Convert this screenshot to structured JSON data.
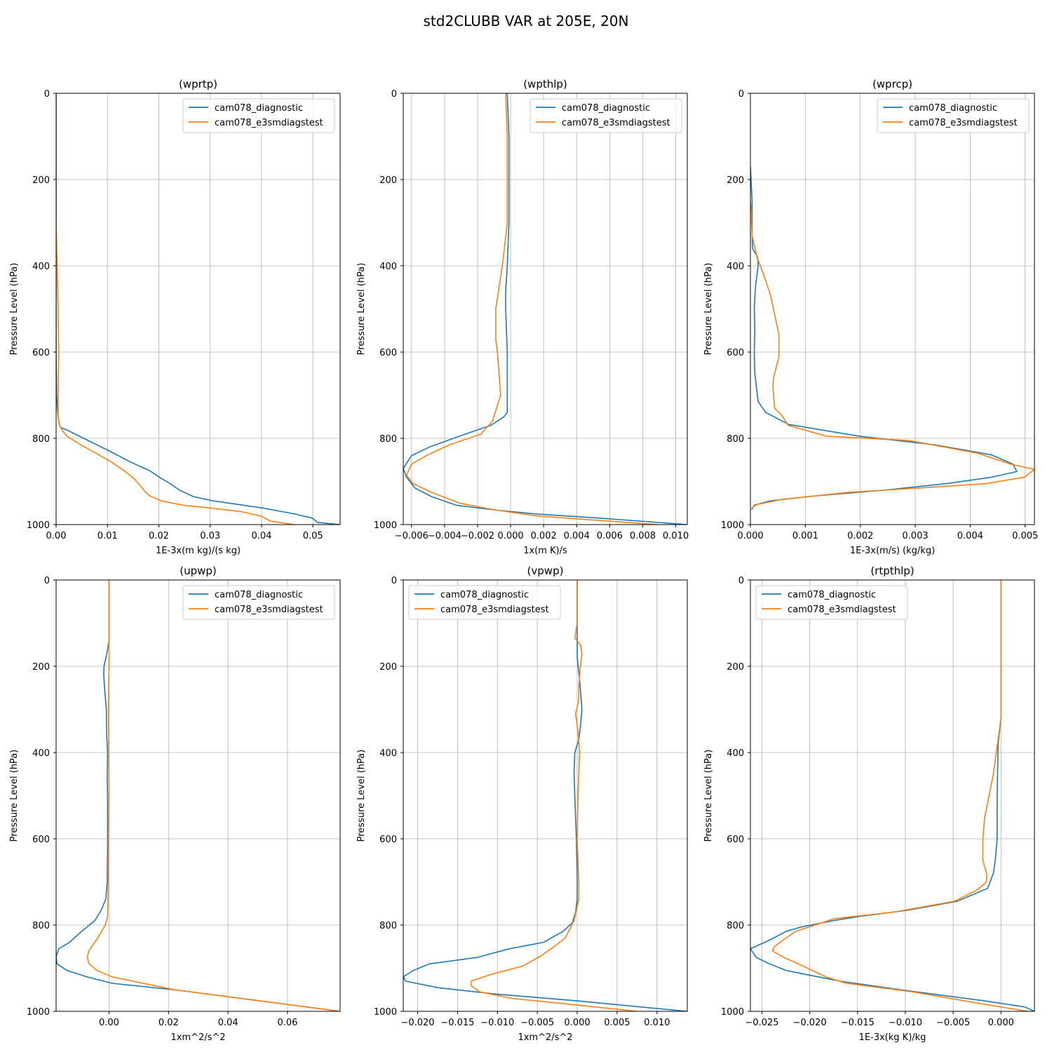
{
  "figure": {
    "suptitle": "std2CLUBB VAR at 205E, 20N"
  },
  "colors": {
    "series_1": "#1f77b4",
    "series_2": "#ff7f0e"
  },
  "chart_data": [
    {
      "type": "line",
      "title": "(wprtp)",
      "xlabel": "1E-3x(m kg)/(s kg)",
      "ylabel": "Pressure Level (hPa)",
      "xlim": [
        0,
        0.0553
      ],
      "ylim": [
        1000,
        0
      ],
      "xticks": [
        0,
        0.01,
        0.02,
        0.03,
        0.04,
        0.05
      ],
      "xtick_labels": [
        "0.00",
        "0.01",
        "0.02",
        "0.03",
        "0.04",
        "0.05"
      ],
      "yticks": [
        0,
        200,
        400,
        600,
        800,
        1000
      ],
      "ytick_labels": [
        "0",
        "200",
        "400",
        "600",
        "800",
        "1000"
      ],
      "grid": true,
      "legend": "upper right",
      "series": [
        {
          "name": "cam078_diagnostic",
          "x": [
            0,
            0,
            0,
            0,
            0,
            0,
            0,
            0.0001,
            0.0003,
            0.0005,
            0.0007,
            0.0009,
            0.002,
            0.0045,
            0.0105,
            0.0145,
            0.0182,
            0.0205,
            0.0222,
            0.024,
            0.0267,
            0.0306,
            0.0404,
            0.0463,
            0.0499,
            0.0509,
            0.0553
          ],
          "y": [
            0,
            100,
            200,
            300,
            400,
            500,
            600,
            700,
            740,
            760,
            770,
            775,
            780,
            795,
            830,
            855,
            875,
            893,
            905,
            920,
            935,
            945,
            962,
            975,
            985,
            995,
            1000
          ]
        },
        {
          "name": "cam078_e3smdiagstest",
          "x": [
            0,
            0,
            0,
            0,
            0.0002,
            0.0004,
            0.0005,
            0.0004,
            0.0004,
            0.0007,
            0.0011,
            0.0021,
            0.0048,
            0.0108,
            0.0138,
            0.0153,
            0.0164,
            0.0172,
            0.0181,
            0.0205,
            0.0247,
            0.0303,
            0.036,
            0.0398,
            0.0418,
            0.0464
          ],
          "y": [
            0,
            100,
            200,
            300,
            400,
            500,
            600,
            700,
            750,
            770,
            780,
            795,
            815,
            855,
            880,
            895,
            910,
            922,
            933,
            945,
            955,
            962,
            970,
            980,
            992,
            1000
          ]
        }
      ]
    },
    {
      "type": "line",
      "title": "(wpthlp)",
      "xlabel": "1x(m K)/s",
      "ylabel": "Pressure Level (hPa)",
      "xlim": [
        -0.0065,
        0.0107
      ],
      "ylim": [
        1000,
        0
      ],
      "xticks": [
        -0.006,
        -0.004,
        -0.002,
        0,
        0.002,
        0.004,
        0.006,
        0.008,
        0.01
      ],
      "xtick_labels": [
        "−0.006",
        "−0.004",
        "−0.002",
        "0.000",
        "0.002",
        "0.004",
        "0.006",
        "0.008",
        "0.010"
      ],
      "yticks": [
        0,
        200,
        400,
        600,
        800,
        1000
      ],
      "ytick_labels": [
        "0",
        "200",
        "400",
        "600",
        "800",
        "1000"
      ],
      "grid": true,
      "legend": "upper right",
      "series": [
        {
          "name": "cam078_diagnostic",
          "x": [
            -0.0002,
            -0.0001,
            -0.0001,
            -0.0001,
            -0.0002,
            -0.0003,
            -0.0003,
            -0.0002,
            -0.0002,
            -0.0002,
            -0.0002,
            -0.0004,
            -0.0012,
            -0.0031,
            -0.0049,
            -0.006,
            -0.0065,
            -0.0063,
            -0.0058,
            -0.0048,
            -0.0033,
            -0.0012,
            0.0014,
            0.0054,
            0.0107
          ],
          "y": [
            0,
            100,
            200,
            300,
            400,
            460,
            500,
            600,
            700,
            720,
            740,
            750,
            770,
            795,
            820,
            840,
            870,
            890,
            915,
            935,
            955,
            965,
            975,
            985,
            1000
          ]
        },
        {
          "name": "cam078_e3smdiagstest",
          "x": [
            -0.0003,
            -0.0002,
            -0.0002,
            -0.0002,
            -0.0002,
            -0.0005,
            -0.0007,
            -0.0009,
            -0.0009,
            -0.0008,
            -0.0007,
            -0.0006,
            -0.0011,
            -0.0018,
            -0.0037,
            -0.0051,
            -0.006,
            -0.0063,
            -0.0059,
            -0.0048,
            -0.0031,
            -0.0011,
            0.0016,
            0.0089
          ],
          "y": [
            0,
            100,
            200,
            250,
            300,
            400,
            450,
            500,
            570,
            600,
            650,
            700,
            760,
            790,
            815,
            840,
            860,
            885,
            905,
            925,
            950,
            965,
            980,
            1000
          ]
        }
      ]
    },
    {
      "type": "line",
      "title": "(wprcp)",
      "xlabel": "1E-3x(m/s) (kg/kg)",
      "ylabel": "Pressure Level (hPa)",
      "xlim": [
        0,
        0.00517
      ],
      "ylim": [
        1000,
        0
      ],
      "xticks": [
        0,
        0.001,
        0.002,
        0.003,
        0.004,
        0.005
      ],
      "xtick_labels": [
        "0.000",
        "0.001",
        "0.002",
        "0.003",
        "0.004",
        "0.005"
      ],
      "yticks": [
        0,
        200,
        400,
        600,
        800,
        1000
      ],
      "ytick_labels": [
        "0",
        "200",
        "400",
        "600",
        "800",
        "1000"
      ],
      "grid": true,
      "legend": "upper right",
      "series": [
        {
          "name": "cam078_diagnostic",
          "x": [
            0,
            3e-05,
            3e-05,
            3e-05,
            4e-05,
            0.00013,
            0.00014,
            9e-05,
            7e-05,
            8e-05,
            7e-05,
            8e-05,
            0.00014,
            0.00028,
            0.0007,
            0.00198,
            0.00335,
            0.00438,
            0.00478,
            0.00485,
            0.00439,
            0.00357,
            0.00244,
            0.00105,
            0.00036,
            7e-05,
            2e-05
          ],
          "y": [
            170,
            250,
            300,
            330,
            360,
            380,
            400,
            450,
            500,
            550,
            600,
            650,
            715,
            740,
            768,
            795,
            815,
            838,
            860,
            877,
            890,
            905,
            920,
            935,
            945,
            955,
            965
          ]
        },
        {
          "name": "cam078_e3smdiagstest",
          "x": [
            0,
            2e-05,
            2e-05,
            3e-05,
            0.00012,
            0.00024,
            0.00037,
            0.00052,
            0.00052,
            0.00042,
            0.00041,
            0.00044,
            0.00056,
            0.00069,
            0.00138,
            0.00289,
            0.00415,
            0.00474,
            0.00517,
            0.00499,
            0.00428,
            0.0031,
            0.0018,
            0.00056,
            0.00013,
            3e-05
          ],
          "y": [
            250,
            280,
            300,
            330,
            380,
            420,
            470,
            560,
            610,
            660,
            680,
            730,
            745,
            770,
            795,
            805,
            835,
            860,
            872,
            890,
            905,
            915,
            925,
            942,
            953,
            960
          ]
        }
      ]
    },
    {
      "type": "line",
      "title": "(upwp)",
      "xlabel": "1xm^2/s^2",
      "ylabel": "Pressure Level (hPa)",
      "xlim": [
        -0.0178,
        0.0777
      ],
      "ylim": [
        1000,
        0
      ],
      "xticks": [
        0,
        0.02,
        0.04,
        0.06
      ],
      "xtick_labels": [
        "0.00",
        "0.02",
        "0.04",
        "0.06"
      ],
      "yticks": [
        0,
        200,
        400,
        600,
        800,
        1000
      ],
      "ytick_labels": [
        "0",
        "200",
        "400",
        "600",
        "800",
        "1000"
      ],
      "grid": true,
      "legend": "upper right",
      "series": [
        {
          "name": "cam078_diagnostic",
          "x": [
            0,
            0,
            0,
            -0.0007,
            -0.0017,
            -0.0018,
            -0.0014,
            -0.0009,
            -0.0008,
            -0.0005,
            -0.0006,
            -0.0005,
            -0.0005,
            -0.0006,
            -0.0011,
            -0.0026,
            -0.0048,
            -0.0093,
            -0.0133,
            -0.0169,
            -0.0178,
            -0.0175,
            -0.0142,
            -0.0075,
            0.001,
            0.022,
            0.0777
          ],
          "y": [
            0,
            100,
            140,
            170,
            200,
            220,
            260,
            300,
            360,
            400,
            460,
            500,
            600,
            700,
            740,
            765,
            790,
            815,
            840,
            855,
            873,
            890,
            905,
            920,
            935,
            950,
            1000
          ]
        },
        {
          "name": "cam078_e3smdiagstest",
          "x": [
            0,
            0,
            0,
            -0.0002,
            -0.0001,
            0,
            -0.0002,
            -0.0003,
            -0.0004,
            -0.0005,
            -0.0013,
            -0.0038,
            -0.0068,
            -0.0073,
            -0.0067,
            -0.0041,
            0.001,
            0.022,
            0.0777
          ],
          "y": [
            0,
            100,
            200,
            300,
            400,
            500,
            600,
            700,
            750,
            780,
            800,
            830,
            860,
            875,
            890,
            905,
            920,
            950,
            1000
          ]
        }
      ]
    },
    {
      "type": "line",
      "title": "(vpwp)",
      "xlabel": "1xm^2/s^2",
      "ylabel": "Pressure Level (hPa)",
      "xlim": [
        -0.0218,
        0.0138
      ],
      "ylim": [
        1000,
        0
      ],
      "xticks": [
        -0.02,
        -0.015,
        -0.01,
        -0.005,
        0,
        0.005,
        0.01
      ],
      "xtick_labels": [
        "−0.020",
        "−0.015",
        "−0.010",
        "−0.005",
        "0.000",
        "0.005",
        "0.010"
      ],
      "yticks": [
        0,
        200,
        400,
        600,
        800,
        1000
      ],
      "ytick_labels": [
        "0",
        "200",
        "400",
        "600",
        "800",
        "1000"
      ],
      "grid": true,
      "legend": "upper left",
      "series": [
        {
          "name": "cam078_diagnostic",
          "x": [
            0,
            0,
            0,
            0,
            0.0003,
            0.0006,
            0.0004,
            0.0002,
            -0.0003,
            -0.0004,
            -0.0003,
            -0.0001,
            0,
            0,
            -0.0002,
            -0.0006,
            -0.0018,
            -0.0042,
            -0.0085,
            -0.0125,
            -0.0185,
            -0.0205,
            -0.0218,
            -0.0215,
            -0.0175,
            -0.0102,
            -0.0005,
            0.0138
          ],
          "y": [
            0,
            90,
            120,
            180,
            230,
            300,
            340,
            370,
            400,
            450,
            500,
            600,
            700,
            740,
            770,
            795,
            815,
            840,
            855,
            875,
            890,
            905,
            920,
            930,
            945,
            960,
            975,
            1000
          ]
        },
        {
          "name": "cam078_e3smdiagstest",
          "x": [
            0,
            0,
            -0.0003,
            0.0004,
            0.0006,
            0.0004,
            0.0002,
            0.0002,
            -0.0002,
            0.0001,
            0.0003,
            0.0001,
            0,
            0.0002,
            0.0002,
            -0.0004,
            -0.0015,
            -0.0029,
            -0.0044,
            -0.0068,
            -0.0109,
            -0.0133,
            -0.0133,
            -0.0122,
            -0.0082,
            0.0075
          ],
          "y": [
            0,
            100,
            135,
            150,
            170,
            200,
            250,
            280,
            310,
            350,
            400,
            500,
            600,
            700,
            740,
            790,
            830,
            850,
            870,
            895,
            915,
            930,
            940,
            955,
            970,
            1000
          ]
        }
      ]
    },
    {
      "type": "line",
      "title": "(rtpthlp)",
      "xlabel": "1E-3x(kg K)/kg",
      "ylabel": "Pressure Level (hPa)",
      "xlim": [
        -0.0262,
        0.0035
      ],
      "ylim": [
        1000,
        0
      ],
      "xticks": [
        -0.025,
        -0.02,
        -0.015,
        -0.01,
        -0.005,
        0
      ],
      "xtick_labels": [
        "−0.025",
        "−0.020",
        "−0.015",
        "−0.010",
        "−0.005",
        "0.000"
      ],
      "yticks": [
        0,
        200,
        400,
        600,
        800,
        1000
      ],
      "ytick_labels": [
        "0",
        "200",
        "400",
        "600",
        "800",
        "1000"
      ],
      "grid": true,
      "legend": "upper left",
      "series": [
        {
          "name": "cam078_diagnostic",
          "x": [
            0,
            0,
            0,
            0,
            -0.0003,
            -0.0004,
            -0.0004,
            -0.0006,
            -0.0008,
            -0.0014,
            -0.0046,
            -0.0096,
            -0.0148,
            -0.0176,
            -0.021,
            -0.0225,
            -0.0242,
            -0.0262,
            -0.0256,
            -0.0242,
            -0.0225,
            -0.0203,
            -0.0168,
            -0.0105,
            -0.002,
            0.0025,
            0.0035
          ],
          "y": [
            0,
            100,
            200,
            320,
            380,
            500,
            600,
            650,
            680,
            715,
            745,
            765,
            780,
            790,
            805,
            815,
            835,
            855,
            875,
            890,
            905,
            915,
            930,
            950,
            975,
            990,
            1000
          ]
        },
        {
          "name": "cam078_e3smdiagstest",
          "x": [
            0,
            0,
            0,
            0,
            -0.0008,
            -0.0017,
            -0.0019,
            -0.0019,
            -0.0015,
            -0.0015,
            -0.0026,
            -0.0049,
            -0.0112,
            -0.0174,
            -0.0215,
            -0.0228,
            -0.0237,
            -0.0239,
            -0.0227,
            -0.0207,
            -0.0183,
            -0.0162,
            -0.0092,
            -0.0027,
            0.0028
          ],
          "y": [
            0,
            100,
            200,
            320,
            450,
            550,
            600,
            650,
            680,
            700,
            720,
            745,
            770,
            785,
            815,
            835,
            850,
            860,
            875,
            895,
            920,
            935,
            955,
            980,
            1000
          ]
        }
      ]
    }
  ]
}
